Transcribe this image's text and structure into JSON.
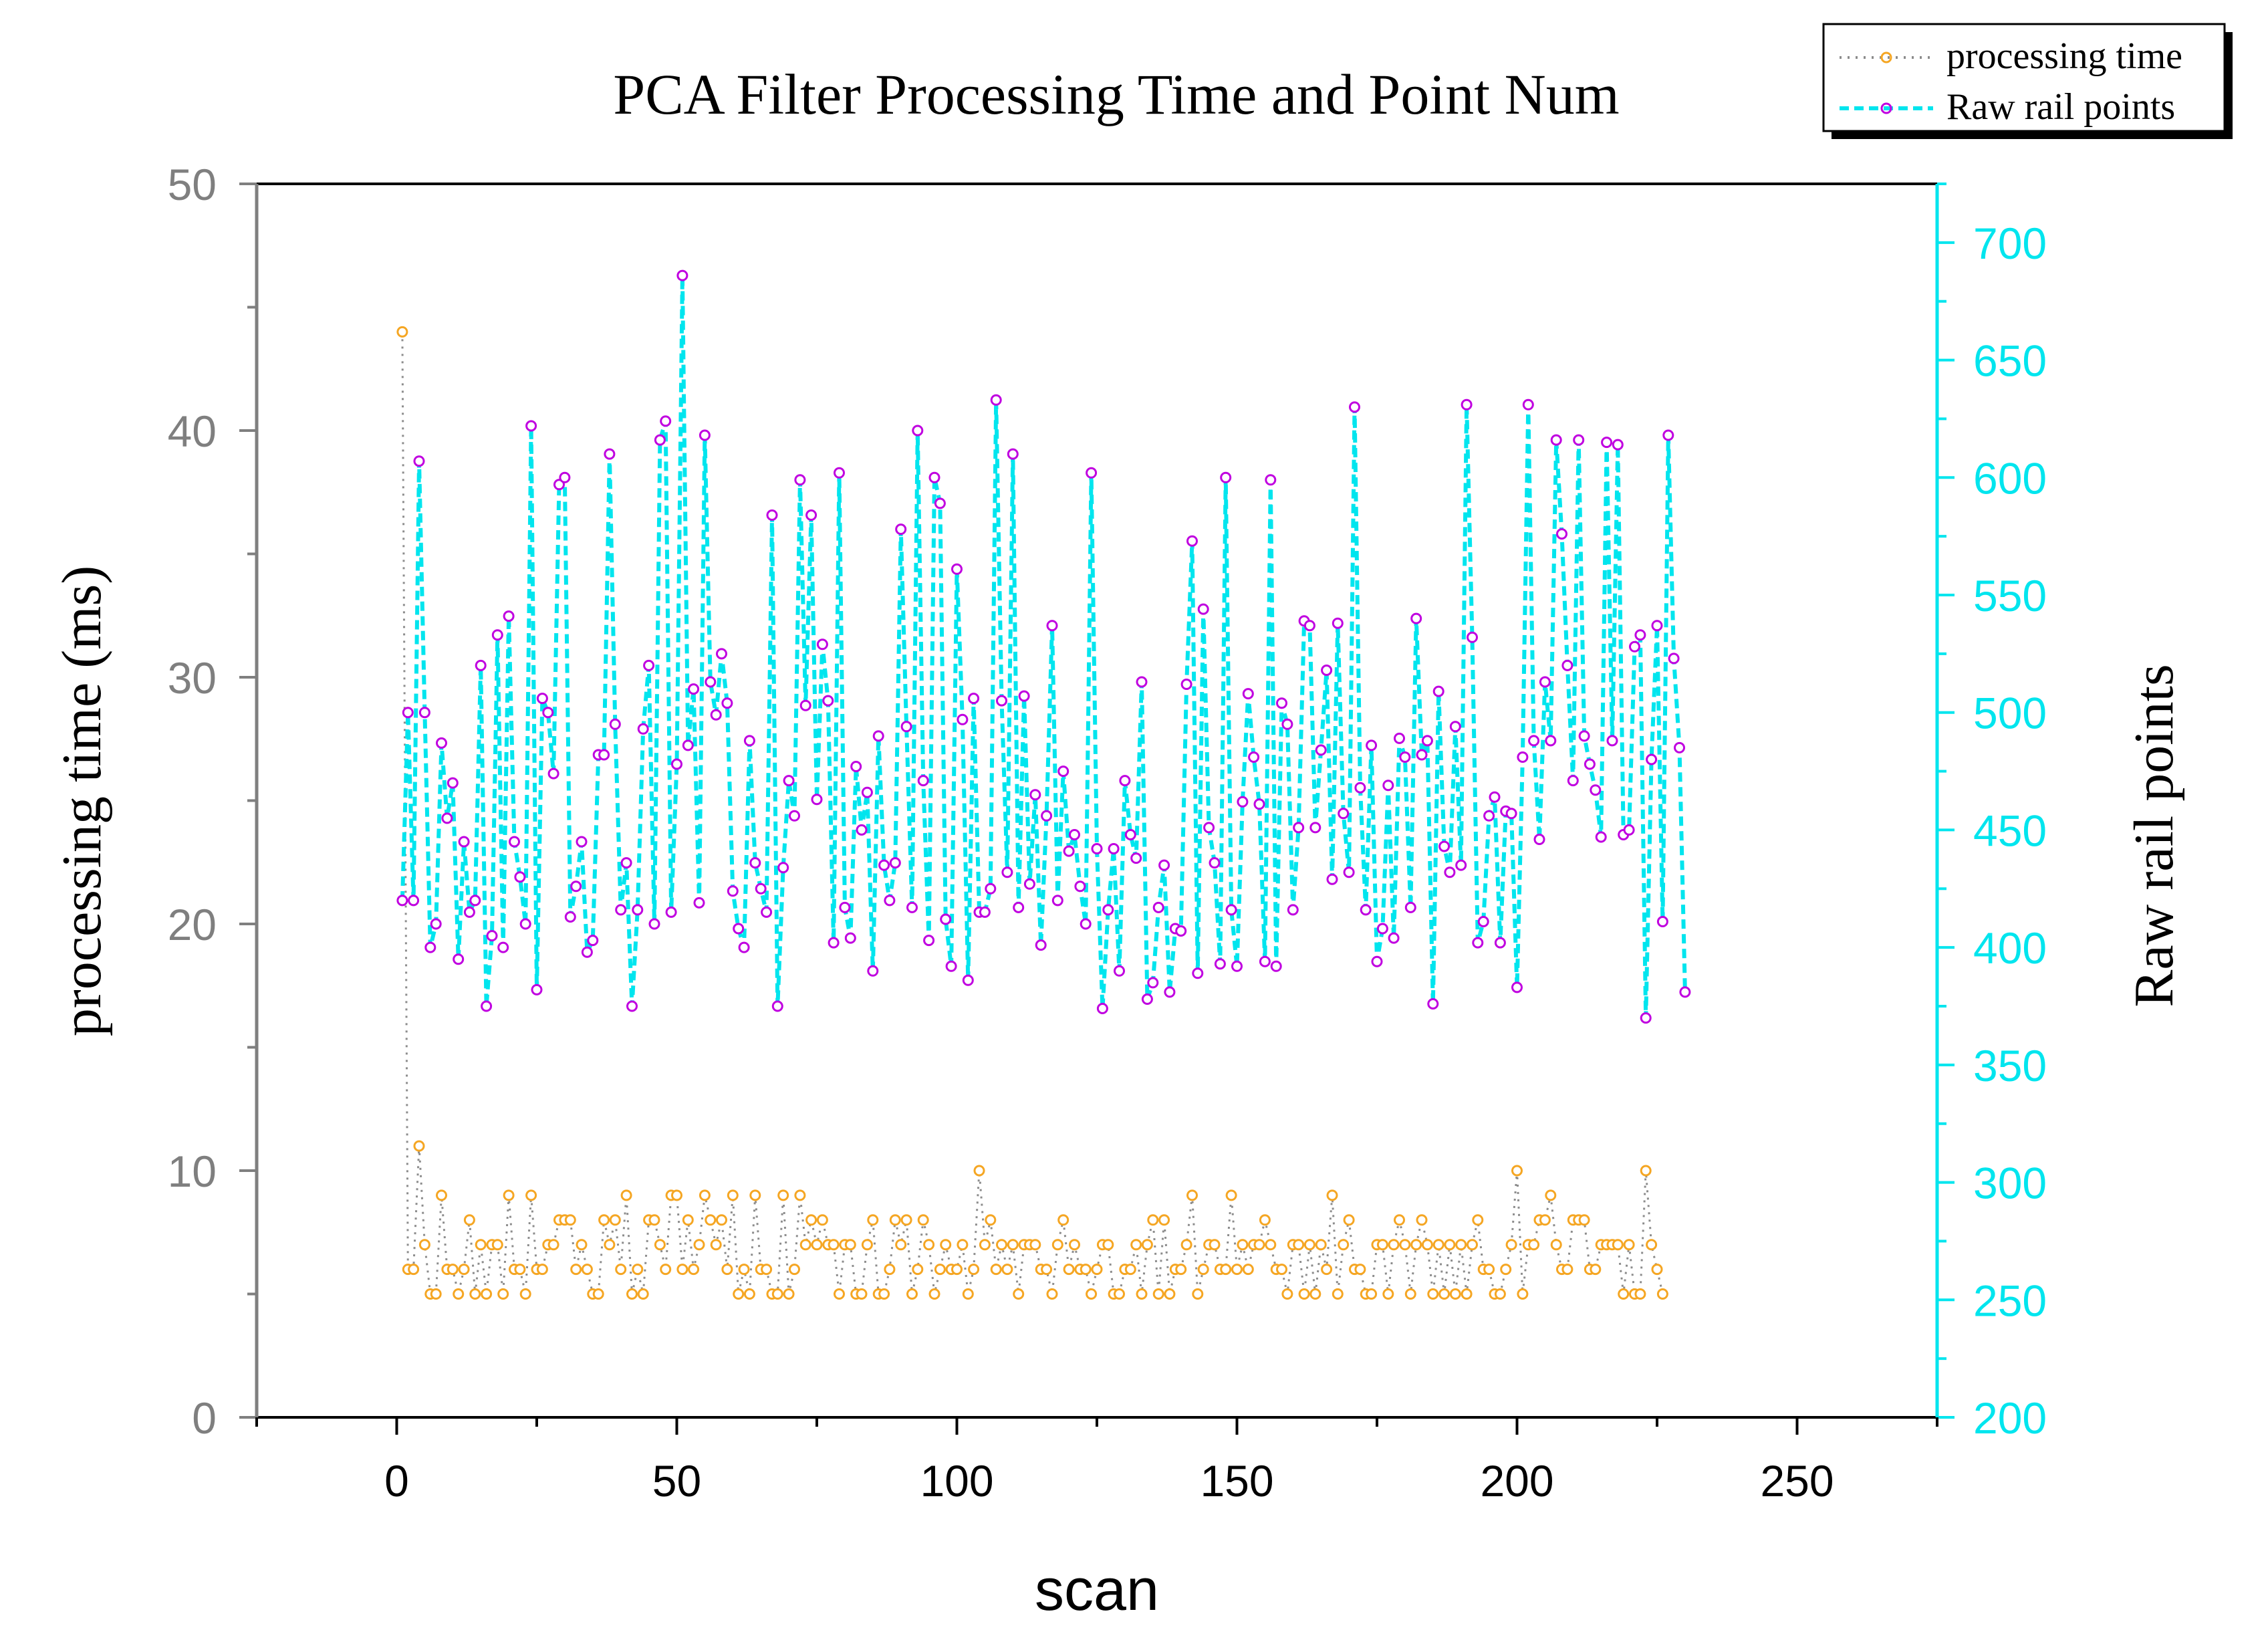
{
  "chart_data": {
    "type": "line",
    "title": "PCA  Filter Processing Time and Point Num",
    "xlabel": "scan",
    "ylabel": "processing time (ms)",
    "y2label": "Raw rail points",
    "xlim": [
      -25,
      275
    ],
    "ylim": [
      0,
      50
    ],
    "y2lim": [
      200,
      725
    ],
    "x_ticks": [
      0,
      50,
      100,
      150,
      200,
      250
    ],
    "y_ticks": [
      0,
      10,
      20,
      30,
      40,
      50
    ],
    "y2_ticks": [
      200,
      250,
      300,
      350,
      400,
      450,
      500,
      550,
      600,
      650,
      700
    ],
    "legend_position": "top-right",
    "colors": {
      "time_line": "#8c8c8c",
      "time_marker": "#f5a623",
      "points_line": "#00e5ee",
      "points_marker": "#c000e0",
      "left_axis": "#7f7f7f",
      "right_axis": "#00e5ee",
      "frame": "#000000"
    },
    "series": [
      {
        "name": "processing time",
        "axis": "left",
        "x_start": 1,
        "values": [
          44,
          6,
          6,
          11,
          7,
          5,
          5,
          9,
          6,
          6,
          5,
          6,
          8,
          5,
          7,
          5,
          7,
          7,
          5,
          9,
          6,
          6,
          5,
          9,
          6,
          6,
          7,
          7,
          8,
          8,
          8,
          6,
          7,
          6,
          5,
          5,
          8,
          7,
          8,
          6,
          9,
          5,
          6,
          5,
          8,
          8,
          7,
          6,
          9,
          9,
          6,
          8,
          6,
          7,
          9,
          8,
          7,
          8,
          6,
          9,
          5,
          6,
          5,
          9,
          6,
          6,
          5,
          5,
          9,
          5,
          6,
          9,
          7,
          8,
          7,
          8,
          7,
          7,
          5,
          7,
          7,
          5,
          5,
          7,
          8,
          5,
          5,
          6,
          8,
          7,
          8,
          5,
          6,
          8,
          7,
          5,
          6,
          7,
          6,
          6,
          7,
          5,
          6,
          10,
          7,
          8,
          6,
          7,
          6,
          7,
          5,
          7,
          7,
          7,
          6,
          6,
          5,
          7,
          8,
          6,
          7,
          6,
          6,
          5,
          6,
          7,
          7,
          5,
          5,
          6,
          6,
          7,
          5,
          7,
          8,
          5,
          8,
          5,
          6,
          6,
          7,
          9,
          5,
          6,
          7,
          7,
          6,
          6,
          9,
          6,
          7,
          6,
          7,
          7,
          8,
          7,
          6,
          6,
          5,
          7,
          7,
          5,
          7,
          5,
          7,
          6,
          9,
          5,
          7,
          8,
          6,
          6,
          5,
          5,
          7,
          7,
          5,
          7,
          8,
          7,
          5,
          7,
          8,
          7,
          5,
          7,
          5,
          7,
          5,
          7,
          5,
          7,
          8,
          6,
          6,
          5,
          5,
          6,
          7,
          10,
          5,
          7,
          7,
          8,
          8,
          9,
          7,
          6,
          6,
          8,
          8,
          8,
          6,
          6,
          7,
          7,
          7,
          7,
          5,
          7,
          5,
          5,
          10,
          7,
          6,
          5
        ]
      },
      {
        "name": "Raw rail points",
        "axis": "right",
        "x_start": 1,
        "values": [
          420,
          500,
          420,
          607,
          500,
          400,
          410,
          487,
          455,
          470,
          395,
          445,
          415,
          420,
          520,
          375,
          405,
          533,
          400,
          541,
          445,
          430,
          410,
          622,
          382,
          506,
          500,
          474,
          597,
          600,
          413,
          426,
          445,
          398,
          403,
          482,
          482,
          610,
          495,
          416,
          436,
          375,
          416,
          493,
          520,
          410,
          616,
          624,
          415,
          478,
          686,
          486,
          510,
          419,
          618,
          513,
          499,
          525,
          504,
          424,
          408,
          400,
          488,
          436,
          425,
          415,
          584,
          375,
          434,
          471,
          456,
          599,
          503,
          584,
          463,
          529,
          505,
          402,
          602,
          417,
          404,
          477,
          450,
          466,
          390,
          490,
          435,
          420,
          436,
          578,
          494,
          417,
          620,
          471,
          403,
          600,
          589,
          412,
          392,
          561,
          497,
          386,
          506,
          415,
          415,
          425,
          633,
          505,
          432,
          610,
          417,
          507,
          427,
          465,
          401,
          456,
          537,
          420,
          475,
          441,
          448,
          426,
          410,
          602,
          442,
          374,
          416,
          442,
          390,
          471,
          448,
          438,
          513,
          378,
          385,
          417,
          435,
          381,
          408,
          407,
          512,
          573,
          389,
          544,
          451,
          436,
          393,
          600,
          416,
          392,
          462,
          508,
          481,
          461,
          394,
          599,
          392,
          504,
          495,
          416,
          451,
          539,
          537,
          451,
          484,
          518,
          429,
          538,
          457,
          432,
          630,
          468,
          416,
          486,
          394,
          408,
          469,
          404,
          489,
          481,
          417,
          540,
          482,
          488,
          376,
          509,
          443,
          432,
          494,
          435,
          631,
          532,
          402,
          411,
          456,
          464,
          402,
          458,
          457,
          383,
          481,
          631,
          488,
          446,
          513,
          488,
          616,
          576,
          520,
          471,
          616,
          490,
          478,
          467,
          447,
          615,
          488,
          614,
          448,
          450,
          528,
          533,
          370,
          480,
          537,
          411,
          618,
          523,
          485,
          381
        ]
      }
    ]
  }
}
